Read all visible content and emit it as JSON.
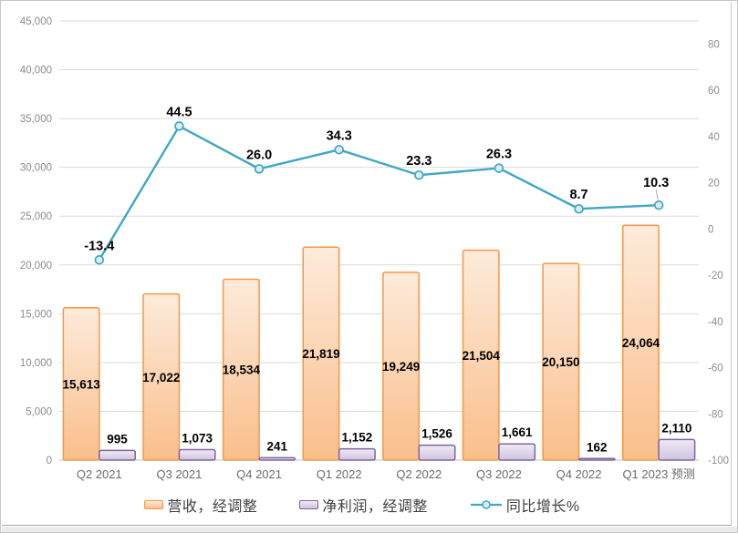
{
  "chart_data": {
    "type": "combo",
    "title": "",
    "categories": [
      "Q2 2021",
      "Q3 2021",
      "Q4 2021",
      "Q1 2022",
      "Q2 2022",
      "Q3 2022",
      "Q4 2022",
      "Q1 2023 预测"
    ],
    "series": [
      {
        "name": "营收，经调整",
        "type": "bar",
        "axis": "left",
        "values": [
          15613,
          17022,
          18534,
          21819,
          19249,
          21504,
          20150,
          24064
        ],
        "label_position": "center",
        "stroke": "#F79646",
        "fill_top": "#FDEBDB",
        "fill_bottom": "#FABE8B"
      },
      {
        "name": "净利润，经调整",
        "type": "bar",
        "axis": "left",
        "values": [
          995,
          1073,
          241,
          1152,
          1526,
          1661,
          162,
          2110
        ],
        "label_position": "above",
        "stroke": "#8064A2",
        "fill_top": "#EFEBF4",
        "fill_bottom": "#CFC3DE"
      },
      {
        "name": "同比增长%",
        "type": "line",
        "axis": "right",
        "values": [
          -13.4,
          44.5,
          26.0,
          34.3,
          23.3,
          26.3,
          8.7,
          10.3
        ],
        "color": "#3EA6C8",
        "marker_fill": "#DAEEF6",
        "label_offsets": [
          [
            0,
            0
          ],
          [
            0,
            0
          ],
          [
            0,
            0
          ],
          [
            0,
            0
          ],
          [
            0,
            0
          ],
          [
            0,
            0
          ],
          [
            0,
            0
          ],
          [
            -3,
            -9
          ]
        ],
        "leader_on_last": true
      }
    ],
    "left_axis": {
      "min": 0,
      "max": 45000,
      "tick_step": 5000
    },
    "right_axis": {
      "min": -100,
      "max": 90,
      "ticks": [
        80,
        60,
        40,
        20,
        0,
        -20,
        -40,
        -60,
        -80,
        -100
      ]
    },
    "grid": true,
    "legend_position": "bottom",
    "colors": {
      "gridline": "#dbdbdb",
      "axis_line": "#bfbfbf",
      "tick_text": "#8c8c8c",
      "category_text": "#6b6b6b",
      "data_label": "#000000",
      "leader_line": "#a6a6a6"
    }
  }
}
